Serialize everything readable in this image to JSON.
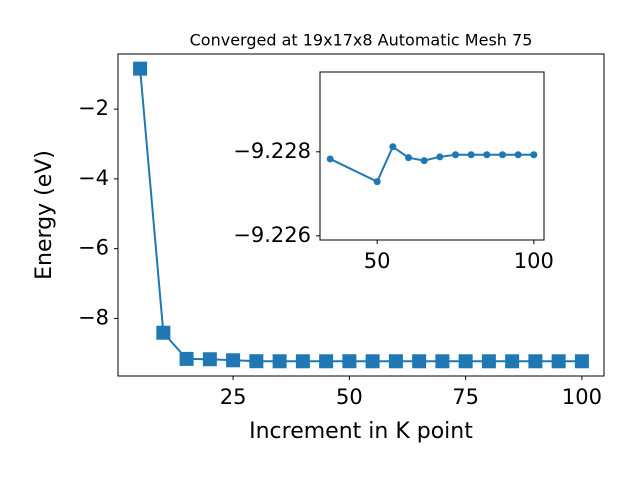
{
  "chart_data": [
    {
      "type": "line",
      "title": "Converged at 19x17x8 Automatic Mesh 75",
      "x_label": "Increment in K point",
      "y_label": "Energy (eV)",
      "marker": "square",
      "color": "#1f77b4",
      "x": [
        5,
        10,
        15,
        20,
        25,
        30,
        35,
        40,
        45,
        50,
        55,
        60,
        65,
        70,
        75,
        80,
        85,
        90,
        95,
        100
      ],
      "series": [
        {
          "color": "#1f77b4",
          "values": [
            -0.84,
            -8.41,
            -9.16,
            -9.17,
            -9.2,
            -9.226,
            -9.228,
            -9.228,
            -9.228,
            -9.227,
            -9.228,
            -9.228,
            -9.228,
            -9.228,
            -9.228,
            -9.228,
            -9.228,
            -9.228,
            -9.228,
            -9.228
          ]
        }
      ],
      "xlim": [
        0.25,
        104.75
      ],
      "xticks": [
        25,
        50,
        75,
        100
      ],
      "ylim": [
        -9.65,
        -0.42
      ],
      "yticks": [
        {
          "value": -8,
          "label": "−8"
        },
        {
          "value": -6,
          "label": "−6"
        },
        {
          "value": -4,
          "label": "−4"
        },
        {
          "value": -2,
          "label": "−2"
        }
      ]
    },
    {
      "type": "line",
      "marker": "circle",
      "x": [
        35,
        50,
        55,
        60,
        65,
        70,
        75,
        80,
        85,
        90,
        95,
        100
      ],
      "series": [
        {
          "color": "#1f77b4",
          "values": [
            -9.22783,
            -9.22729,
            -9.22812,
            -9.22786,
            -9.22779,
            -9.22788,
            -9.22793,
            -9.22793,
            -9.22793,
            -9.22793,
            -9.22793,
            -9.22793
          ]
        }
      ],
      "xlim": [
        31.75,
        103.25
      ],
      "xticks": [
        50,
        100
      ],
      "ylim": [
        -9.2259,
        -9.2299
      ],
      "y_inverted": true,
      "yticks": [
        {
          "value": -9.228,
          "label": "−9.228"
        },
        {
          "value": -9.226,
          "label": "−9.226"
        }
      ]
    }
  ]
}
